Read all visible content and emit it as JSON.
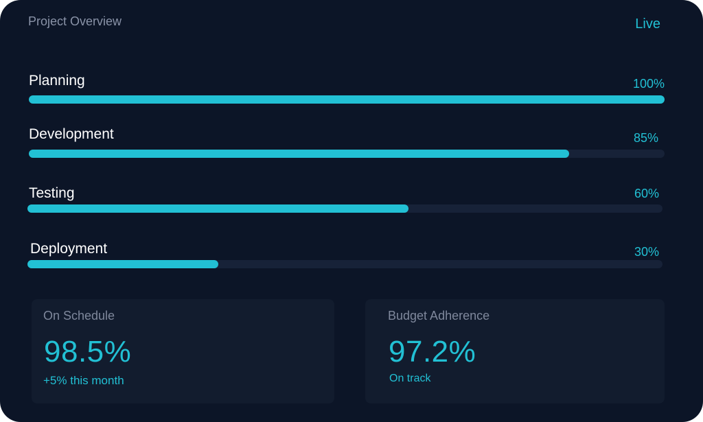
{
  "header": {
    "title": "Project Overview",
    "status": "Live"
  },
  "stages": [
    {
      "label": "Planning",
      "value_label": "100%",
      "progress": 100
    },
    {
      "label": "Development",
      "value_label": "85%",
      "progress": 85
    },
    {
      "label": "Testing",
      "value_label": "60%",
      "progress": 60
    },
    {
      "label": "Deployment",
      "value_label": "30%",
      "progress": 30
    }
  ],
  "metrics": [
    {
      "label": "On Schedule",
      "value": "98.5%",
      "sub": "+5% this month"
    },
    {
      "label": "Budget Adherence",
      "value": "97.2%",
      "sub": "On track"
    }
  ],
  "colors": {
    "accent": "#22c0d4",
    "background": "#0c1527",
    "panel": "#121c2e",
    "track": "#172238"
  }
}
